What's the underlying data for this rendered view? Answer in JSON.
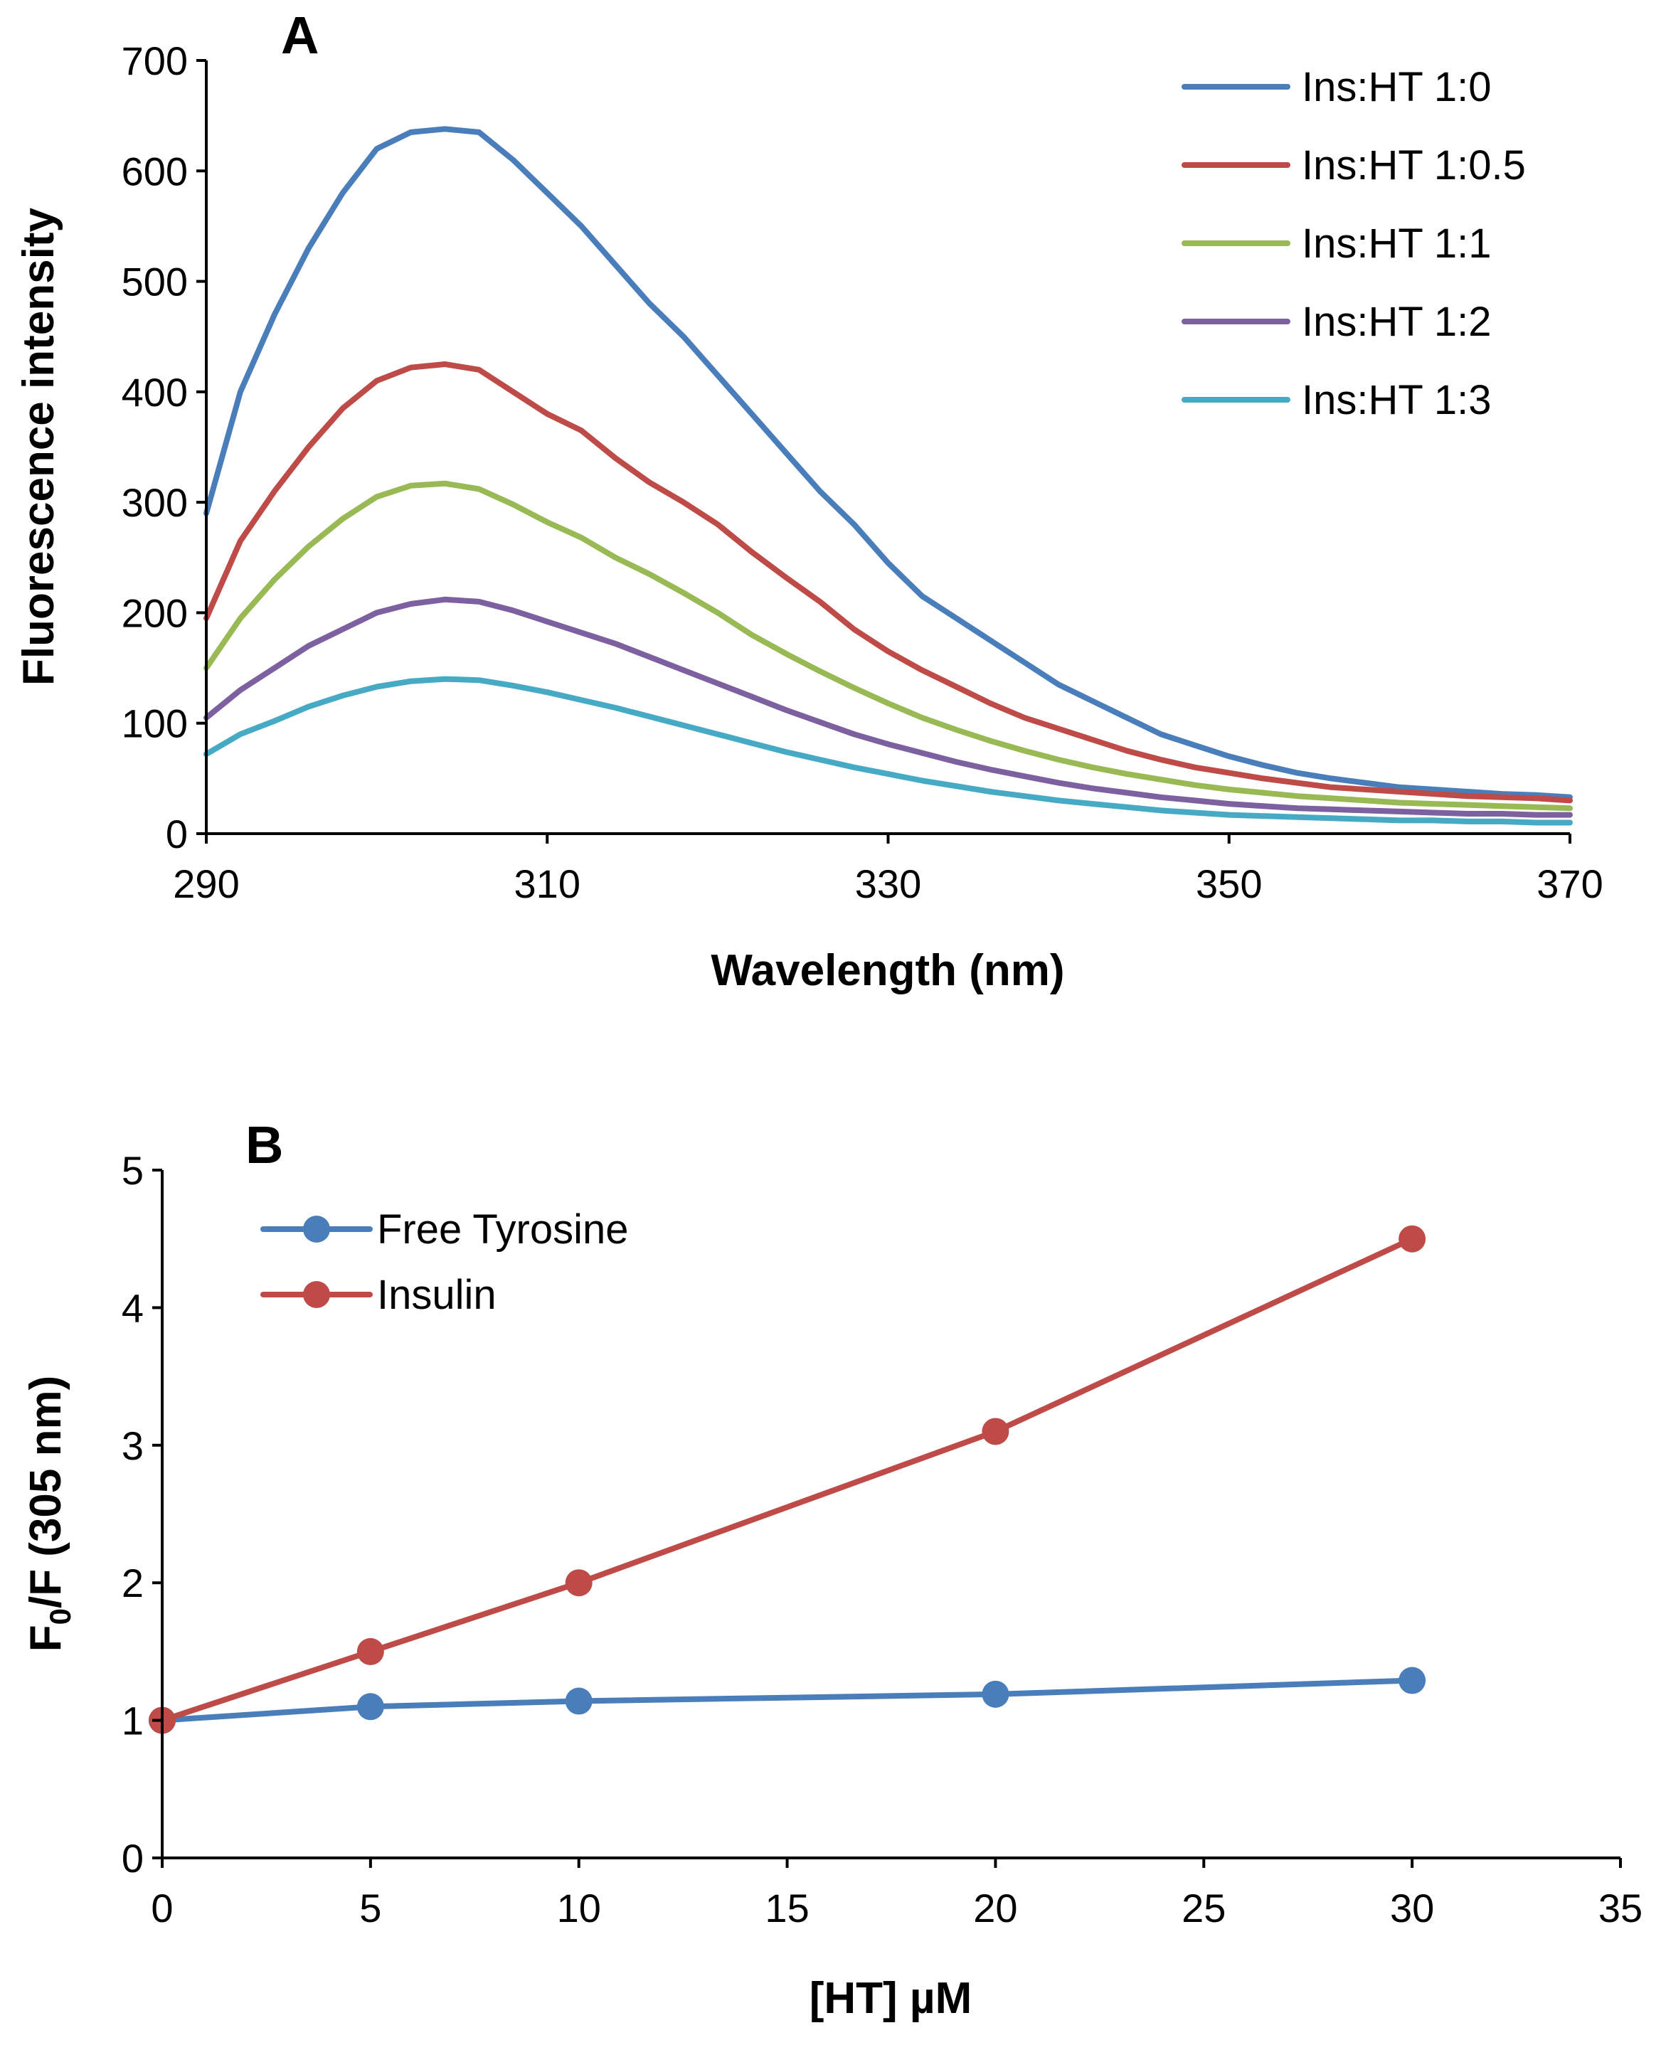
{
  "chart_data": [
    {
      "panel_label": "A",
      "type": "line",
      "xlabel": "Wavelength (nm)",
      "ylabel": "Fluorescence intensity",
      "xlim": [
        290,
        370
      ],
      "ylim": [
        0,
        700
      ],
      "xticks": [
        290,
        310,
        330,
        350,
        370
      ],
      "yticks": [
        0,
        100,
        200,
        300,
        400,
        500,
        600,
        700
      ],
      "grid": false,
      "legend_position": "top-right",
      "x": [
        290,
        292,
        294,
        296,
        298,
        300,
        302,
        304,
        306,
        308,
        310,
        312,
        314,
        316,
        318,
        320,
        322,
        324,
        326,
        328,
        330,
        332,
        334,
        336,
        338,
        340,
        342,
        344,
        346,
        348,
        350,
        352,
        354,
        356,
        358,
        360,
        362,
        364,
        366,
        368,
        370
      ],
      "series": [
        {
          "name": "Ins:HT 1:0",
          "color": "#4a7ebb",
          "values": [
            290,
            400,
            470,
            530,
            580,
            620,
            635,
            638,
            635,
            610,
            580,
            550,
            515,
            480,
            450,
            415,
            380,
            345,
            310,
            280,
            245,
            215,
            195,
            175,
            155,
            135,
            120,
            105,
            90,
            80,
            70,
            62,
            55,
            50,
            46,
            42,
            40,
            38,
            36,
            35,
            33
          ]
        },
        {
          "name": "Ins:HT 1:0.5",
          "color": "#be4b48",
          "values": [
            195,
            265,
            310,
            350,
            385,
            410,
            422,
            425,
            420,
            400,
            380,
            365,
            340,
            318,
            300,
            280,
            255,
            232,
            210,
            185,
            165,
            148,
            133,
            118,
            105,
            95,
            85,
            75,
            67,
            60,
            55,
            50,
            46,
            42,
            40,
            38,
            36,
            34,
            33,
            32,
            30
          ]
        },
        {
          "name": "Ins:HT 1:1",
          "color": "#98b954",
          "values": [
            150,
            195,
            230,
            260,
            285,
            305,
            315,
            317,
            312,
            298,
            282,
            268,
            250,
            235,
            218,
            200,
            180,
            163,
            147,
            132,
            118,
            105,
            94,
            84,
            75,
            67,
            60,
            54,
            49,
            44,
            40,
            37,
            34,
            32,
            30,
            28,
            27,
            26,
            25,
            24,
            23
          ]
        },
        {
          "name": "Ins:HT 1:2",
          "color": "#7d60a0",
          "values": [
            105,
            130,
            150,
            170,
            185,
            200,
            208,
            212,
            210,
            202,
            192,
            182,
            172,
            160,
            148,
            136,
            124,
            112,
            101,
            90,
            81,
            73,
            65,
            58,
            52,
            46,
            41,
            37,
            33,
            30,
            27,
            25,
            23,
            22,
            21,
            20,
            19,
            18,
            18,
            17,
            17
          ]
        },
        {
          "name": "Ins:HT 1:3",
          "color": "#46aac5",
          "values": [
            72,
            90,
            102,
            115,
            125,
            133,
            138,
            140,
            139,
            134,
            128,
            121,
            114,
            106,
            98,
            90,
            82,
            74,
            67,
            60,
            54,
            48,
            43,
            38,
            34,
            30,
            27,
            24,
            21,
            19,
            17,
            16,
            15,
            14,
            13,
            12,
            12,
            11,
            11,
            10,
            10
          ]
        }
      ]
    },
    {
      "panel_label": "B",
      "type": "line",
      "xlabel": "[HT] µM",
      "ylabel_main": "F",
      "ylabel_sub": "0",
      "ylabel_rest": "/F (305 nm)",
      "xlim": [
        0,
        35
      ],
      "ylim": [
        0,
        5
      ],
      "xticks": [
        0,
        5,
        10,
        15,
        20,
        25,
        30,
        35
      ],
      "yticks": [
        0,
        1,
        2,
        3,
        4,
        5
      ],
      "grid": false,
      "legend_position": "top-left",
      "x": [
        0,
        5,
        10,
        20,
        30
      ],
      "series": [
        {
          "name": "Free Tyrosine",
          "color": "#4a7ebb",
          "marker": "circle",
          "values": [
            1.0,
            1.1,
            1.14,
            1.19,
            1.29
          ]
        },
        {
          "name": "Insulin",
          "color": "#be4b48",
          "marker": "circle",
          "values": [
            1.0,
            1.5,
            2.0,
            3.1,
            4.5
          ]
        }
      ]
    }
  ]
}
